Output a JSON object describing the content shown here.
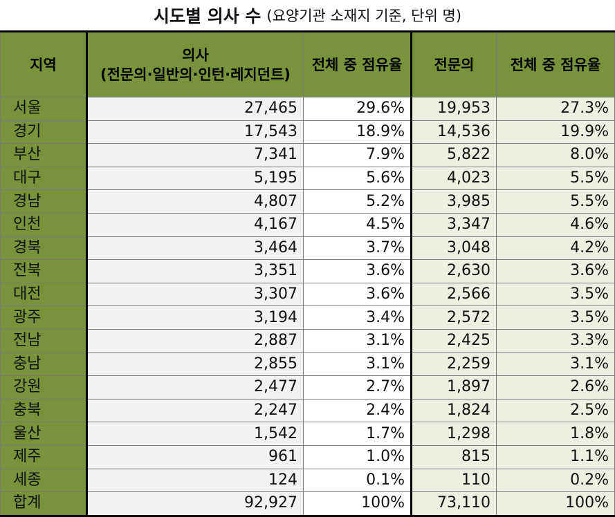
{
  "title": {
    "main": "시도별 의사 수",
    "sub": "(요양기관 소재지 기준, 단위 명)"
  },
  "headers": {
    "region": "지역",
    "doctors_line1": "의사",
    "doctors_line2": "(전문의·일반의·인턴·레지던트)",
    "share1": "전체 중 점유율",
    "specialists": "전문의",
    "share2": "전체 중 점유율"
  },
  "rows": [
    {
      "region": "서울",
      "doctors": "27,465",
      "share": "29.6%",
      "specialists": "19,953",
      "spec_share": "27.3%"
    },
    {
      "region": "경기",
      "doctors": "17,543",
      "share": "18.9%",
      "specialists": "14,536",
      "spec_share": "19.9%"
    },
    {
      "region": "부산",
      "doctors": "7,341",
      "share": "7.9%",
      "specialists": "5,822",
      "spec_share": "8.0%"
    },
    {
      "region": "대구",
      "doctors": "5,195",
      "share": "5.6%",
      "specialists": "4,023",
      "spec_share": "5.5%"
    },
    {
      "region": "경남",
      "doctors": "4,807",
      "share": "5.2%",
      "specialists": "3,985",
      "spec_share": "5.5%"
    },
    {
      "region": "인천",
      "doctors": "4,167",
      "share": "4.5%",
      "specialists": "3,347",
      "spec_share": "4.6%"
    },
    {
      "region": "경북",
      "doctors": "3,464",
      "share": "3.7%",
      "specialists": "3,048",
      "spec_share": "4.2%"
    },
    {
      "region": "전북",
      "doctors": "3,351",
      "share": "3.6%",
      "specialists": "2,630",
      "spec_share": "3.6%"
    },
    {
      "region": "대전",
      "doctors": "3,307",
      "share": "3.6%",
      "specialists": "2,566",
      "spec_share": "3.5%"
    },
    {
      "region": "광주",
      "doctors": "3,194",
      "share": "3.4%",
      "specialists": "2,572",
      "spec_share": "3.5%"
    },
    {
      "region": "전남",
      "doctors": "2,887",
      "share": "3.1%",
      "specialists": "2,425",
      "spec_share": "3.3%"
    },
    {
      "region": "충남",
      "doctors": "2,855",
      "share": "3.1%",
      "specialists": "2,259",
      "spec_share": "3.1%"
    },
    {
      "region": "강원",
      "doctors": "2,477",
      "share": "2.7%",
      "specialists": "1,897",
      "spec_share": "2.6%"
    },
    {
      "region": "충북",
      "doctors": "2,247",
      "share": "2.4%",
      "specialists": "1,824",
      "spec_share": "2.5%"
    },
    {
      "region": "울산",
      "doctors": "1,542",
      "share": "1.7%",
      "specialists": "1,298",
      "spec_share": "1.8%"
    },
    {
      "region": "제주",
      "doctors": "961",
      "share": "1.0%",
      "specialists": "815",
      "spec_share": "1.1%"
    },
    {
      "region": "세종",
      "doctors": "124",
      "share": "0.1%",
      "specialists": "110",
      "spec_share": "0.2%"
    },
    {
      "region": "합계",
      "doctors": "92,927",
      "share": "100%",
      "specialists": "73,110",
      "spec_share": "100%"
    }
  ],
  "colors": {
    "header_green": "#77933c",
    "doctor_col_bg": "#f2f2f2",
    "specialist_col_bg": "#ebf1de"
  }
}
